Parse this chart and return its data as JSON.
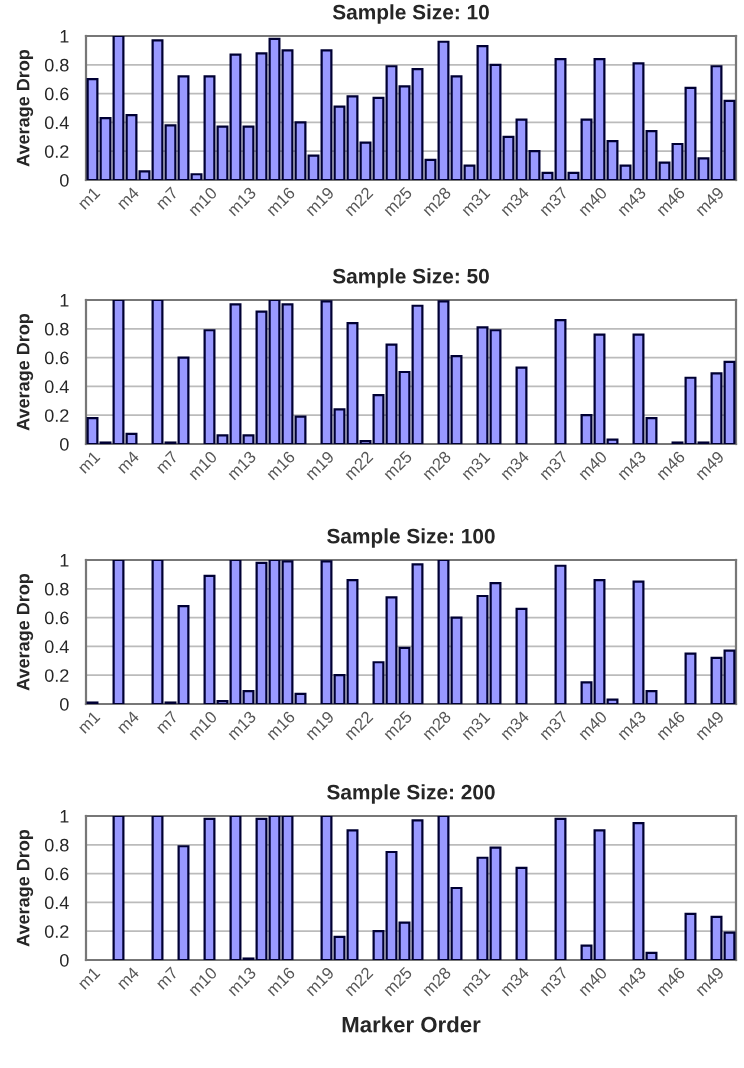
{
  "chart_data": [
    {
      "type": "bar",
      "title": "Sample Size: 10",
      "ylabel": "Average Drop",
      "categories": [
        "m1",
        null,
        null,
        "m4",
        null,
        null,
        "m7",
        null,
        null,
        "m10",
        null,
        null,
        "m13",
        null,
        null,
        "m16",
        null,
        null,
        "m19",
        null,
        null,
        "m22",
        null,
        null,
        "m25",
        null,
        null,
        "m28",
        null,
        null,
        "m31",
        null,
        null,
        "m34",
        null,
        null,
        "m37",
        null,
        null,
        "m40",
        null,
        null,
        "m43",
        null,
        null,
        "m46",
        null,
        null,
        "m49",
        null
      ],
      "values": [
        0.7,
        0.43,
        1.0,
        0.45,
        0.06,
        0.97,
        0.38,
        0.72,
        0.04,
        0.72,
        0.37,
        0.87,
        0.37,
        0.88,
        0.98,
        0.9,
        0.4,
        0.17,
        0.9,
        0.51,
        0.58,
        0.26,
        0.57,
        0.79,
        0.65,
        0.77,
        0.14,
        0.96,
        0.72,
        0.1,
        0.93,
        0.8,
        0.3,
        0.42,
        0.2,
        0.05,
        0.84,
        0.05,
        0.42,
        0.84,
        0.27,
        0.1,
        0.81,
        0.34,
        0.12,
        0.25,
        0.64,
        0.15,
        0.79,
        0.55
      ],
      "color": "#9999ff",
      "ylim": [
        0,
        1
      ],
      "yticks": [
        0,
        0.2,
        0.4,
        0.6,
        0.8,
        1
      ],
      "grid": "y",
      "legend": false
    },
    {
      "type": "bar",
      "title": "Sample Size: 50",
      "ylabel": "Average Drop",
      "categories": [
        "m1",
        null,
        null,
        "m4",
        null,
        null,
        "m7",
        null,
        null,
        "m10",
        null,
        null,
        "m13",
        null,
        null,
        "m16",
        null,
        null,
        "m19",
        null,
        null,
        "m22",
        null,
        null,
        "m25",
        null,
        null,
        "m28",
        null,
        null,
        "m31",
        null,
        null,
        "m34",
        null,
        null,
        "m37",
        null,
        null,
        "m40",
        null,
        null,
        "m43",
        null,
        null,
        "m46",
        null,
        null,
        "m49",
        null
      ],
      "values": [
        0.18,
        0.01,
        1.0,
        0.07,
        null,
        1.0,
        0.01,
        0.6,
        null,
        0.79,
        0.06,
        0.97,
        0.06,
        0.92,
        1.0,
        0.97,
        0.19,
        null,
        0.99,
        0.24,
        0.84,
        0.02,
        0.34,
        0.69,
        0.5,
        0.96,
        null,
        0.99,
        0.61,
        null,
        0.81,
        0.79,
        null,
        0.53,
        null,
        null,
        0.86,
        null,
        0.2,
        0.76,
        0.03,
        null,
        0.76,
        0.18,
        null,
        0.01,
        0.46,
        0.01,
        0.49,
        0.57
      ],
      "color": "#9999ff",
      "ylim": [
        0,
        1
      ],
      "yticks": [
        0,
        0.2,
        0.4,
        0.6,
        0.8,
        1
      ],
      "grid": "y",
      "legend": false
    },
    {
      "type": "bar",
      "title": "Sample Size: 100",
      "ylabel": "Average Drop",
      "categories": [
        "m1",
        null,
        null,
        "m4",
        null,
        null,
        "m7",
        null,
        null,
        "m10",
        null,
        null,
        "m13",
        null,
        null,
        "m16",
        null,
        null,
        "m19",
        null,
        null,
        "m22",
        null,
        null,
        "m25",
        null,
        null,
        "m28",
        null,
        null,
        "m31",
        null,
        null,
        "m34",
        null,
        null,
        "m37",
        null,
        null,
        "m40",
        null,
        null,
        "m43",
        null,
        null,
        "m46",
        null,
        null,
        "m49",
        null
      ],
      "values": [
        0.01,
        null,
        1.0,
        null,
        null,
        1.0,
        0.01,
        0.68,
        null,
        0.89,
        0.02,
        1.0,
        0.09,
        0.98,
        1.0,
        0.99,
        0.07,
        null,
        0.99,
        0.2,
        0.86,
        null,
        0.29,
        0.74,
        0.39,
        0.97,
        null,
        1.0,
        0.6,
        null,
        0.75,
        0.84,
        null,
        0.66,
        null,
        null,
        0.96,
        null,
        0.15,
        0.86,
        0.03,
        null,
        0.85,
        0.09,
        null,
        null,
        0.35,
        null,
        0.32,
        0.37
      ],
      "color": "#9999ff",
      "ylim": [
        0,
        1
      ],
      "yticks": [
        0,
        0.2,
        0.4,
        0.6,
        0.8,
        1
      ],
      "grid": "y",
      "legend": false
    },
    {
      "type": "bar",
      "title": "Sample Size: 200",
      "ylabel": "Average Drop",
      "xlabel": "Marker Order",
      "categories": [
        "m1",
        null,
        null,
        "m4",
        null,
        null,
        "m7",
        null,
        null,
        "m10",
        null,
        null,
        "m13",
        null,
        null,
        "m16",
        null,
        null,
        "m19",
        null,
        null,
        "m22",
        null,
        null,
        "m25",
        null,
        null,
        "m28",
        null,
        null,
        "m31",
        null,
        null,
        "m34",
        null,
        null,
        "m37",
        null,
        null,
        "m40",
        null,
        null,
        "m43",
        null,
        null,
        "m46",
        null,
        null,
        "m49",
        null
      ],
      "values": [
        null,
        null,
        1.0,
        null,
        null,
        1.0,
        null,
        0.79,
        null,
        0.98,
        null,
        1.0,
        0.01,
        0.98,
        1.0,
        1.0,
        null,
        null,
        1.0,
        0.16,
        0.9,
        null,
        0.2,
        0.75,
        0.26,
        0.97,
        null,
        1.0,
        0.5,
        null,
        0.71,
        0.78,
        null,
        0.64,
        null,
        null,
        0.98,
        null,
        0.1,
        0.9,
        null,
        null,
        0.95,
        0.05,
        null,
        null,
        0.32,
        null,
        0.3,
        0.19
      ],
      "color": "#9999ff",
      "ylim": [
        0,
        1
      ],
      "yticks": [
        0,
        0.2,
        0.4,
        0.6,
        0.8,
        1
      ],
      "grid": "y",
      "legend": false
    }
  ]
}
